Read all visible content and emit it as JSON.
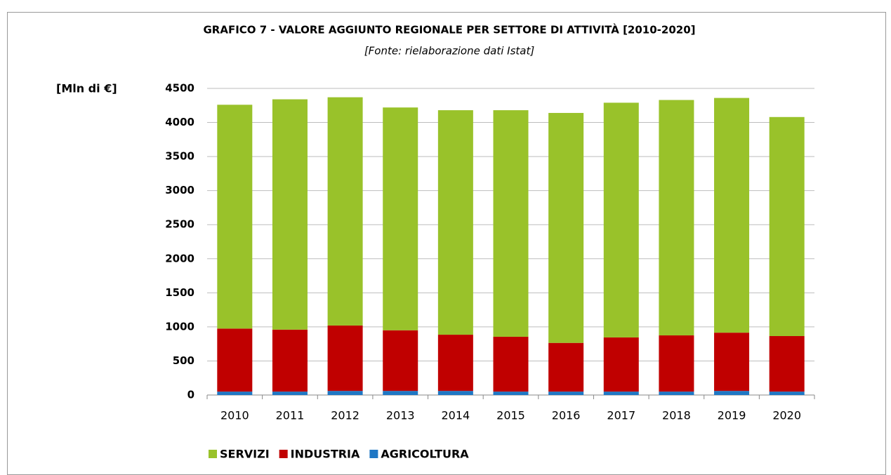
{
  "chart_data": {
    "type": "stacked_bar",
    "title": "GRAFICO 7 - VALORE AGGIUNTO REGIONALE PER SETTORE DI ATTIVITÀ [2010-2020]",
    "subtitle": "[Fonte: rielaborazione dati Istat]",
    "y_axis_label": "[Mln di €]",
    "categories": [
      "2010",
      "2011",
      "2012",
      "2013",
      "2014",
      "2015",
      "2016",
      "2017",
      "2018",
      "2019",
      "2020"
    ],
    "series": [
      {
        "name": "SERVIZI",
        "color": "#99c22a",
        "values": [
          3285,
          3380,
          3350,
          3270,
          3295,
          3325,
          3375,
          3445,
          3455,
          3445,
          3215
        ]
      },
      {
        "name": "INDUSTRIA",
        "color": "#c00000",
        "values": [
          925,
          910,
          960,
          890,
          825,
          805,
          715,
          795,
          825,
          855,
          815
        ]
      },
      {
        "name": "AGRICOLTURA",
        "color": "#1f77c4",
        "values": [
          50,
          50,
          60,
          60,
          60,
          50,
          50,
          50,
          50,
          60,
          50
        ]
      }
    ],
    "ylim": [
      0,
      4500
    ],
    "yticks": [
      0,
      500,
      1000,
      1500,
      2000,
      2500,
      3000,
      3500,
      4000,
      4500
    ],
    "grid": true,
    "legend": "bottom"
  }
}
